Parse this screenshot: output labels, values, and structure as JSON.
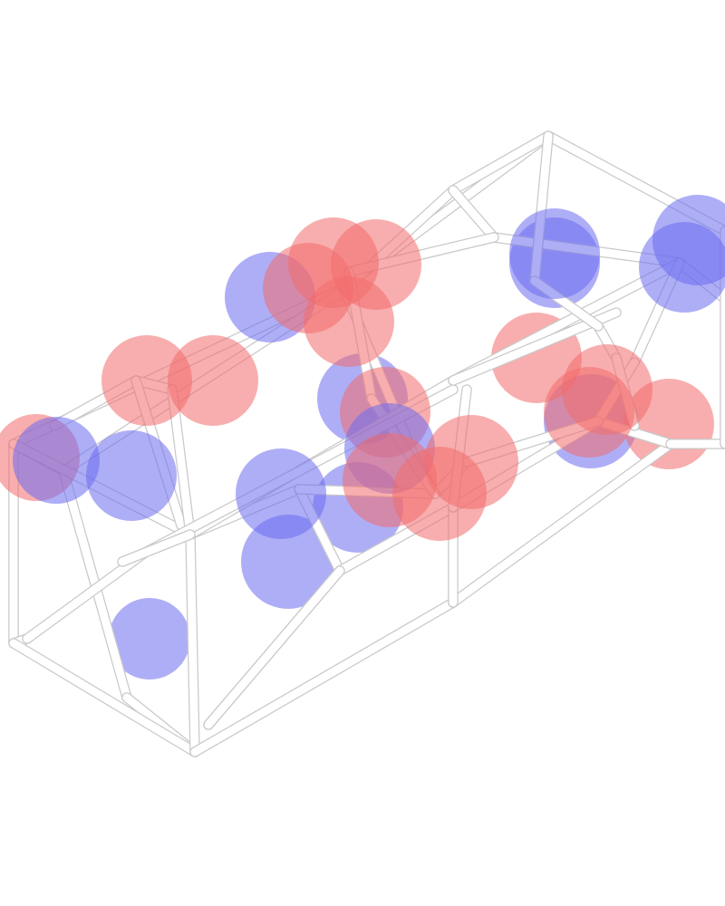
{
  "figure": {
    "background": "#ffffff",
    "frame_color": "#ffffff",
    "frame_shadow_color": "#c9c9c9",
    "positive_lobe_color": "#f26b6b",
    "negative_lobe_color": "#6b6bf0",
    "lobe_opacity": 0.55,
    "caption": ""
  }
}
